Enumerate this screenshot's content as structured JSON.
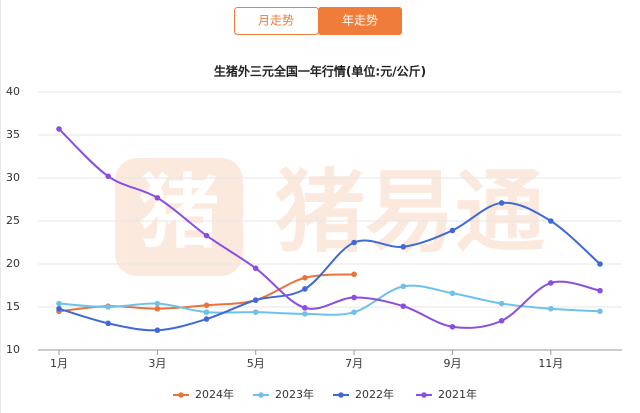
{
  "tabs": [
    "月走势",
    "年走势"
  ],
  "watermark": {
    "logo": "猪",
    "text": "猪易通"
  },
  "chart_data": {
    "type": "line",
    "title": "生猪外三元全国一年行情(单位:元/公斤)",
    "categories": [
      "1月",
      null,
      "3月",
      null,
      "5月",
      null,
      "7月",
      null,
      "9月",
      null,
      "11月",
      null
    ],
    "series": [
      {
        "name": "2024年",
        "color": "#e8743b",
        "values": [
          14.5,
          15.1,
          14.8,
          15.2,
          15.8,
          18.4,
          18.8,
          null,
          null,
          null,
          null,
          null
        ]
      },
      {
        "name": "2023年",
        "color": "#6ec1ea",
        "values": [
          15.4,
          15.0,
          15.4,
          14.4,
          14.4,
          14.2,
          14.4,
          17.4,
          16.6,
          15.4,
          14.8,
          14.5
        ]
      },
      {
        "name": "2022年",
        "color": "#4068d8",
        "values": [
          14.8,
          13.1,
          12.3,
          13.6,
          15.8,
          17.1,
          22.5,
          22.0,
          23.9,
          27.1,
          25.0,
          20.0
        ]
      },
      {
        "name": "2021年",
        "color": "#8b4fe0",
        "values": [
          35.7,
          30.2,
          27.7,
          23.3,
          19.5,
          14.9,
          16.1,
          15.1,
          12.7,
          13.4,
          17.8,
          16.9
        ]
      }
    ],
    "ylim": [
      10,
      40
    ],
    "yticks": [
      10,
      15,
      20,
      25,
      30,
      35,
      40
    ],
    "grid": true,
    "legend": "bottom"
  }
}
